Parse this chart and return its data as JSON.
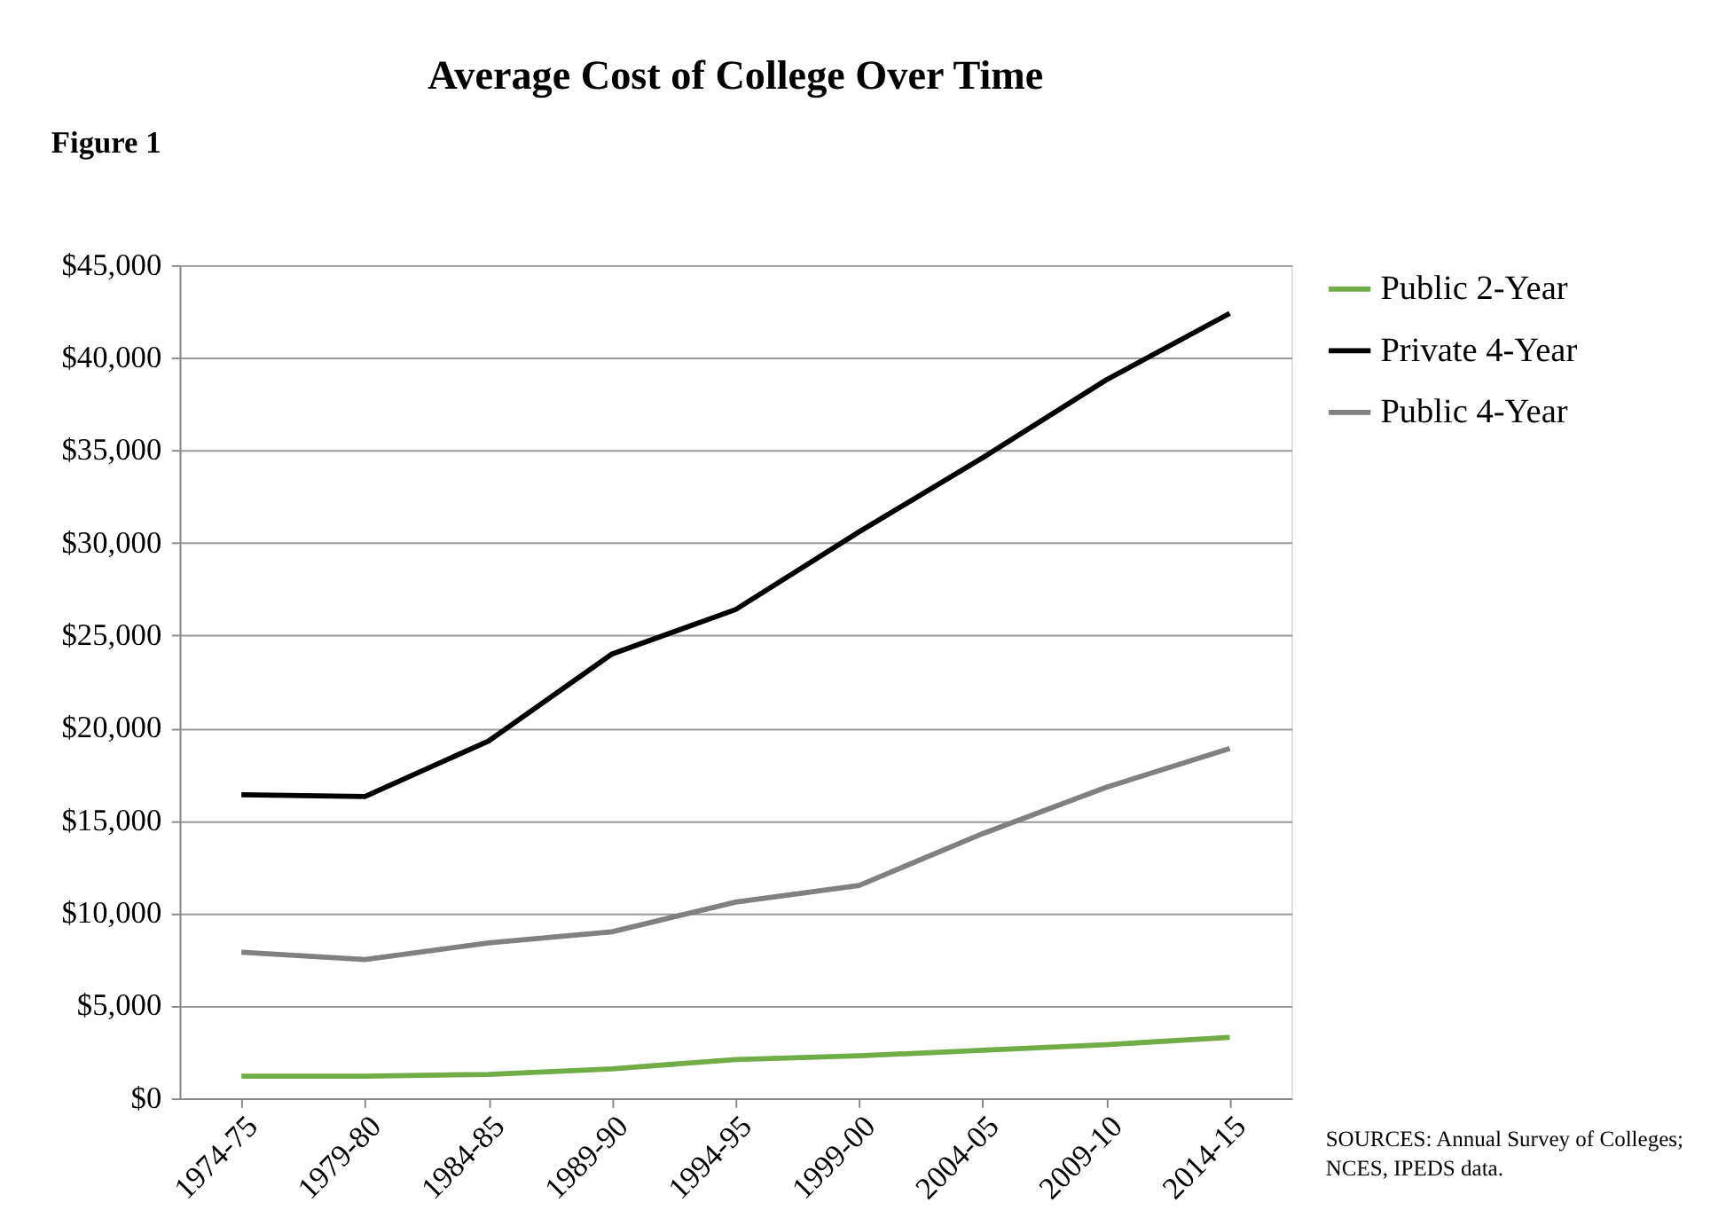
{
  "chart_data": {
    "type": "line",
    "title": "Average Cost of College Over Time",
    "categories": [
      "1974-75",
      "1979-80",
      "1984-85",
      "1989-90",
      "1994-95",
      "1999-00",
      "2004-05",
      "2009-10",
      "2014-15"
    ],
    "series": [
      {
        "name": "Public 2-Year",
        "color": "#70ad47",
        "values": [
          1200,
          1200,
          1300,
          1600,
          2100,
          2300,
          2600,
          2900,
          3300
        ]
      },
      {
        "name": "Private 4-Year",
        "color": "#000000",
        "values": [
          16400,
          16300,
          19300,
          24000,
          26400,
          30600,
          34600,
          38800,
          42400
        ]
      },
      {
        "name": "Public 4-Year",
        "color": "#808080",
        "values": [
          7900,
          7500,
          8400,
          9000,
          10600,
          11500,
          14300,
          16800,
          18900
        ]
      }
    ],
    "ylim": [
      0,
      45000
    ],
    "yticks": [
      {
        "value": 0,
        "label": "$0"
      },
      {
        "value": 5000,
        "label": "$5,000"
      },
      {
        "value": 10000,
        "label": "$10,000"
      },
      {
        "value": 15000,
        "label": "$15,000"
      },
      {
        "value": 20000,
        "label": "$20,000"
      },
      {
        "value": 25000,
        "label": "$25,000"
      },
      {
        "value": 30000,
        "label": "$30,000"
      },
      {
        "value": 35000,
        "label": "$35,000"
      },
      {
        "value": 40000,
        "label": "$40,000"
      },
      {
        "value": 45000,
        "label": "$45,000"
      }
    ],
    "grid": "y",
    "legend": "right",
    "marker": "none",
    "line_style": "solid",
    "annotations": [
      "Figure 1",
      "SOURCES:  Annual Survey of Colleges;\nNCES, IPEDS data."
    ]
  }
}
